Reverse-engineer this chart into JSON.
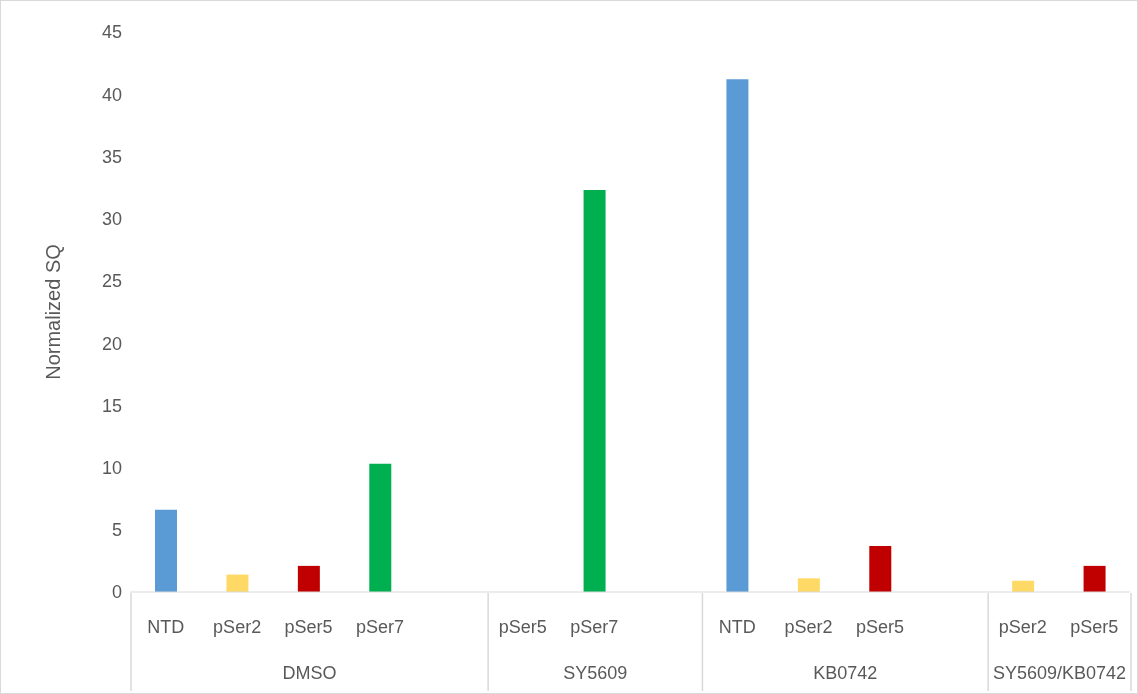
{
  "chart_data": {
    "type": "bar",
    "ylabel": "Normalized SQ",
    "categories": [
      "NTD",
      "pSer2",
      "pSer5",
      "pSer7",
      null,
      "pSer5",
      "pSer7",
      null,
      "NTD",
      "pSer2",
      "pSer5",
      null,
      "pSer2",
      "pSer5"
    ],
    "values": [
      6.6,
      1.4,
      2.1,
      10.3,
      null,
      0,
      32.3,
      null,
      41.2,
      1.1,
      3.7,
      null,
      0.9,
      2.1
    ],
    "colors": [
      "#5b9bd5",
      "#ffd966",
      "#c00000",
      "#00b050",
      null,
      "#c00000",
      "#00b050",
      null,
      "#5b9bd5",
      "#ffd966",
      "#c00000",
      null,
      "#ffd966",
      "#c00000"
    ],
    "ylim": [
      0,
      45
    ],
    "yticks": [
      0,
      5,
      10,
      15,
      20,
      25,
      30,
      35,
      40,
      45
    ],
    "annotations": [
      "DMSO",
      "SY5609",
      "KB0742",
      "SY5609/KB0742"
    ]
  }
}
